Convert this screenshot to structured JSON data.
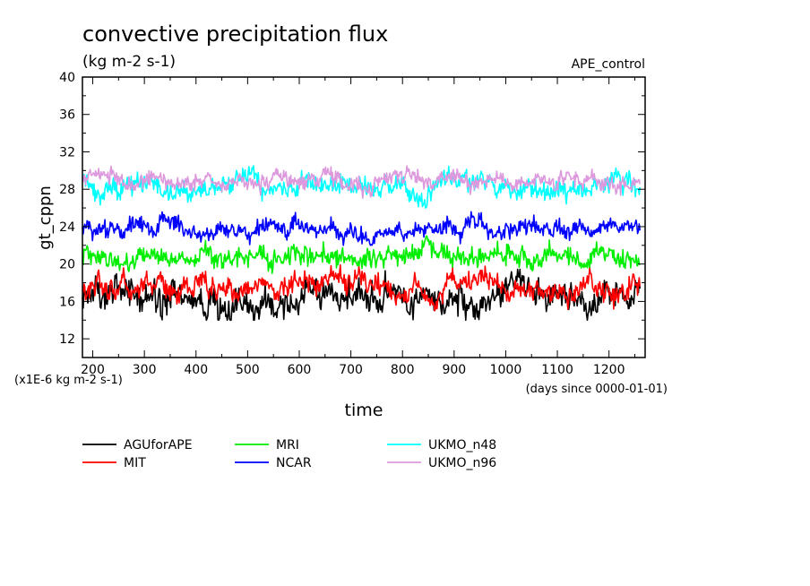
{
  "chart_data": {
    "type": "line",
    "title": "convective precipitation flux",
    "subtitle": "(kg m-2 s-1)",
    "experiment_label": "APE_control",
    "ylabel": "gt_cppn",
    "xlabel": "time",
    "y_unit_note": "(x1E-6 kg m-2 s-1)",
    "x_unit_note": "(days since 0000-01-01)",
    "xlim": [
      180,
      1270
    ],
    "ylim": [
      10,
      40
    ],
    "x_ticks": [
      200,
      300,
      400,
      500,
      600,
      700,
      800,
      900,
      1000,
      1100,
      1200
    ],
    "y_ticks": [
      12,
      16,
      20,
      24,
      28,
      32,
      36,
      40
    ],
    "grid": false,
    "legend_position": "bottom",
    "series": [
      {
        "name": "AGUforAPE",
        "color": "#000000",
        "x_range": [
          180,
          1260
        ],
        "mean": 16.3,
        "amplitude": 1.4,
        "approx_min": 14,
        "approx_max": 19.5
      },
      {
        "name": "MIT",
        "color": "#ff0000",
        "x_range": [
          180,
          1260
        ],
        "mean": 17.4,
        "amplitude": 1.1,
        "approx_min": 15,
        "approx_max": 20
      },
      {
        "name": "MRI",
        "color": "#00ee00",
        "x_range": [
          180,
          1260
        ],
        "mean": 20.9,
        "amplitude": 1.0,
        "approx_min": 19,
        "approx_max": 23
      },
      {
        "name": "NCAR",
        "color": "#0000ff",
        "x_range": [
          180,
          1260
        ],
        "mean": 23.8,
        "amplitude": 0.9,
        "approx_min": 22,
        "approx_max": 26.5
      },
      {
        "name": "UKMO_n48",
        "color": "#00ffff",
        "x_range": [
          180,
          1260
        ],
        "mean": 28.4,
        "amplitude": 1.0,
        "approx_min": 26,
        "approx_max": 30.5
      },
      {
        "name": "UKMO_n96",
        "color": "#dd99dd",
        "x_range": [
          180,
          1260
        ],
        "mean": 28.9,
        "amplitude": 0.8,
        "approx_min": 27,
        "approx_max": 32
      }
    ]
  }
}
